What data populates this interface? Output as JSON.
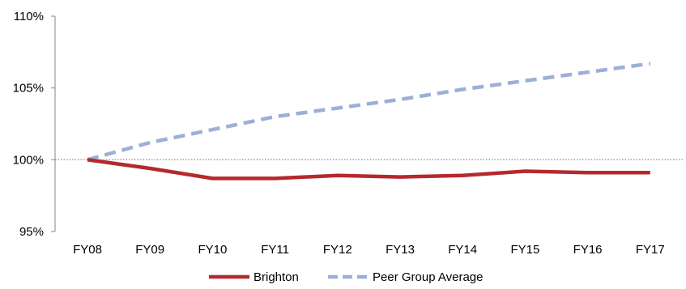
{
  "chart_data": {
    "type": "line",
    "title": "",
    "xlabel": "",
    "ylabel": "",
    "categories": [
      "FY08",
      "FY09",
      "FY10",
      "FY11",
      "FY12",
      "FY13",
      "FY14",
      "FY15",
      "FY16",
      "FY17"
    ],
    "ylim": [
      95,
      110
    ],
    "yticks": [
      95,
      100,
      105,
      110
    ],
    "ytick_labels": [
      "95%",
      "100%",
      "105%",
      "110%"
    ],
    "reference_line": 100,
    "grid": false,
    "legend_position": "bottom",
    "series": [
      {
        "name": "Brighton",
        "color": "#b5292e",
        "style": "solid",
        "values": [
          100.0,
          99.4,
          98.7,
          98.7,
          98.9,
          98.8,
          98.9,
          99.2,
          99.1,
          99.1
        ]
      },
      {
        "name": "Peer Group Average",
        "color": "#9bb0d6",
        "style": "dashed",
        "values": [
          100.0,
          101.2,
          102.1,
          103.0,
          103.6,
          104.2,
          104.9,
          105.5,
          106.1,
          106.7
        ]
      }
    ]
  }
}
